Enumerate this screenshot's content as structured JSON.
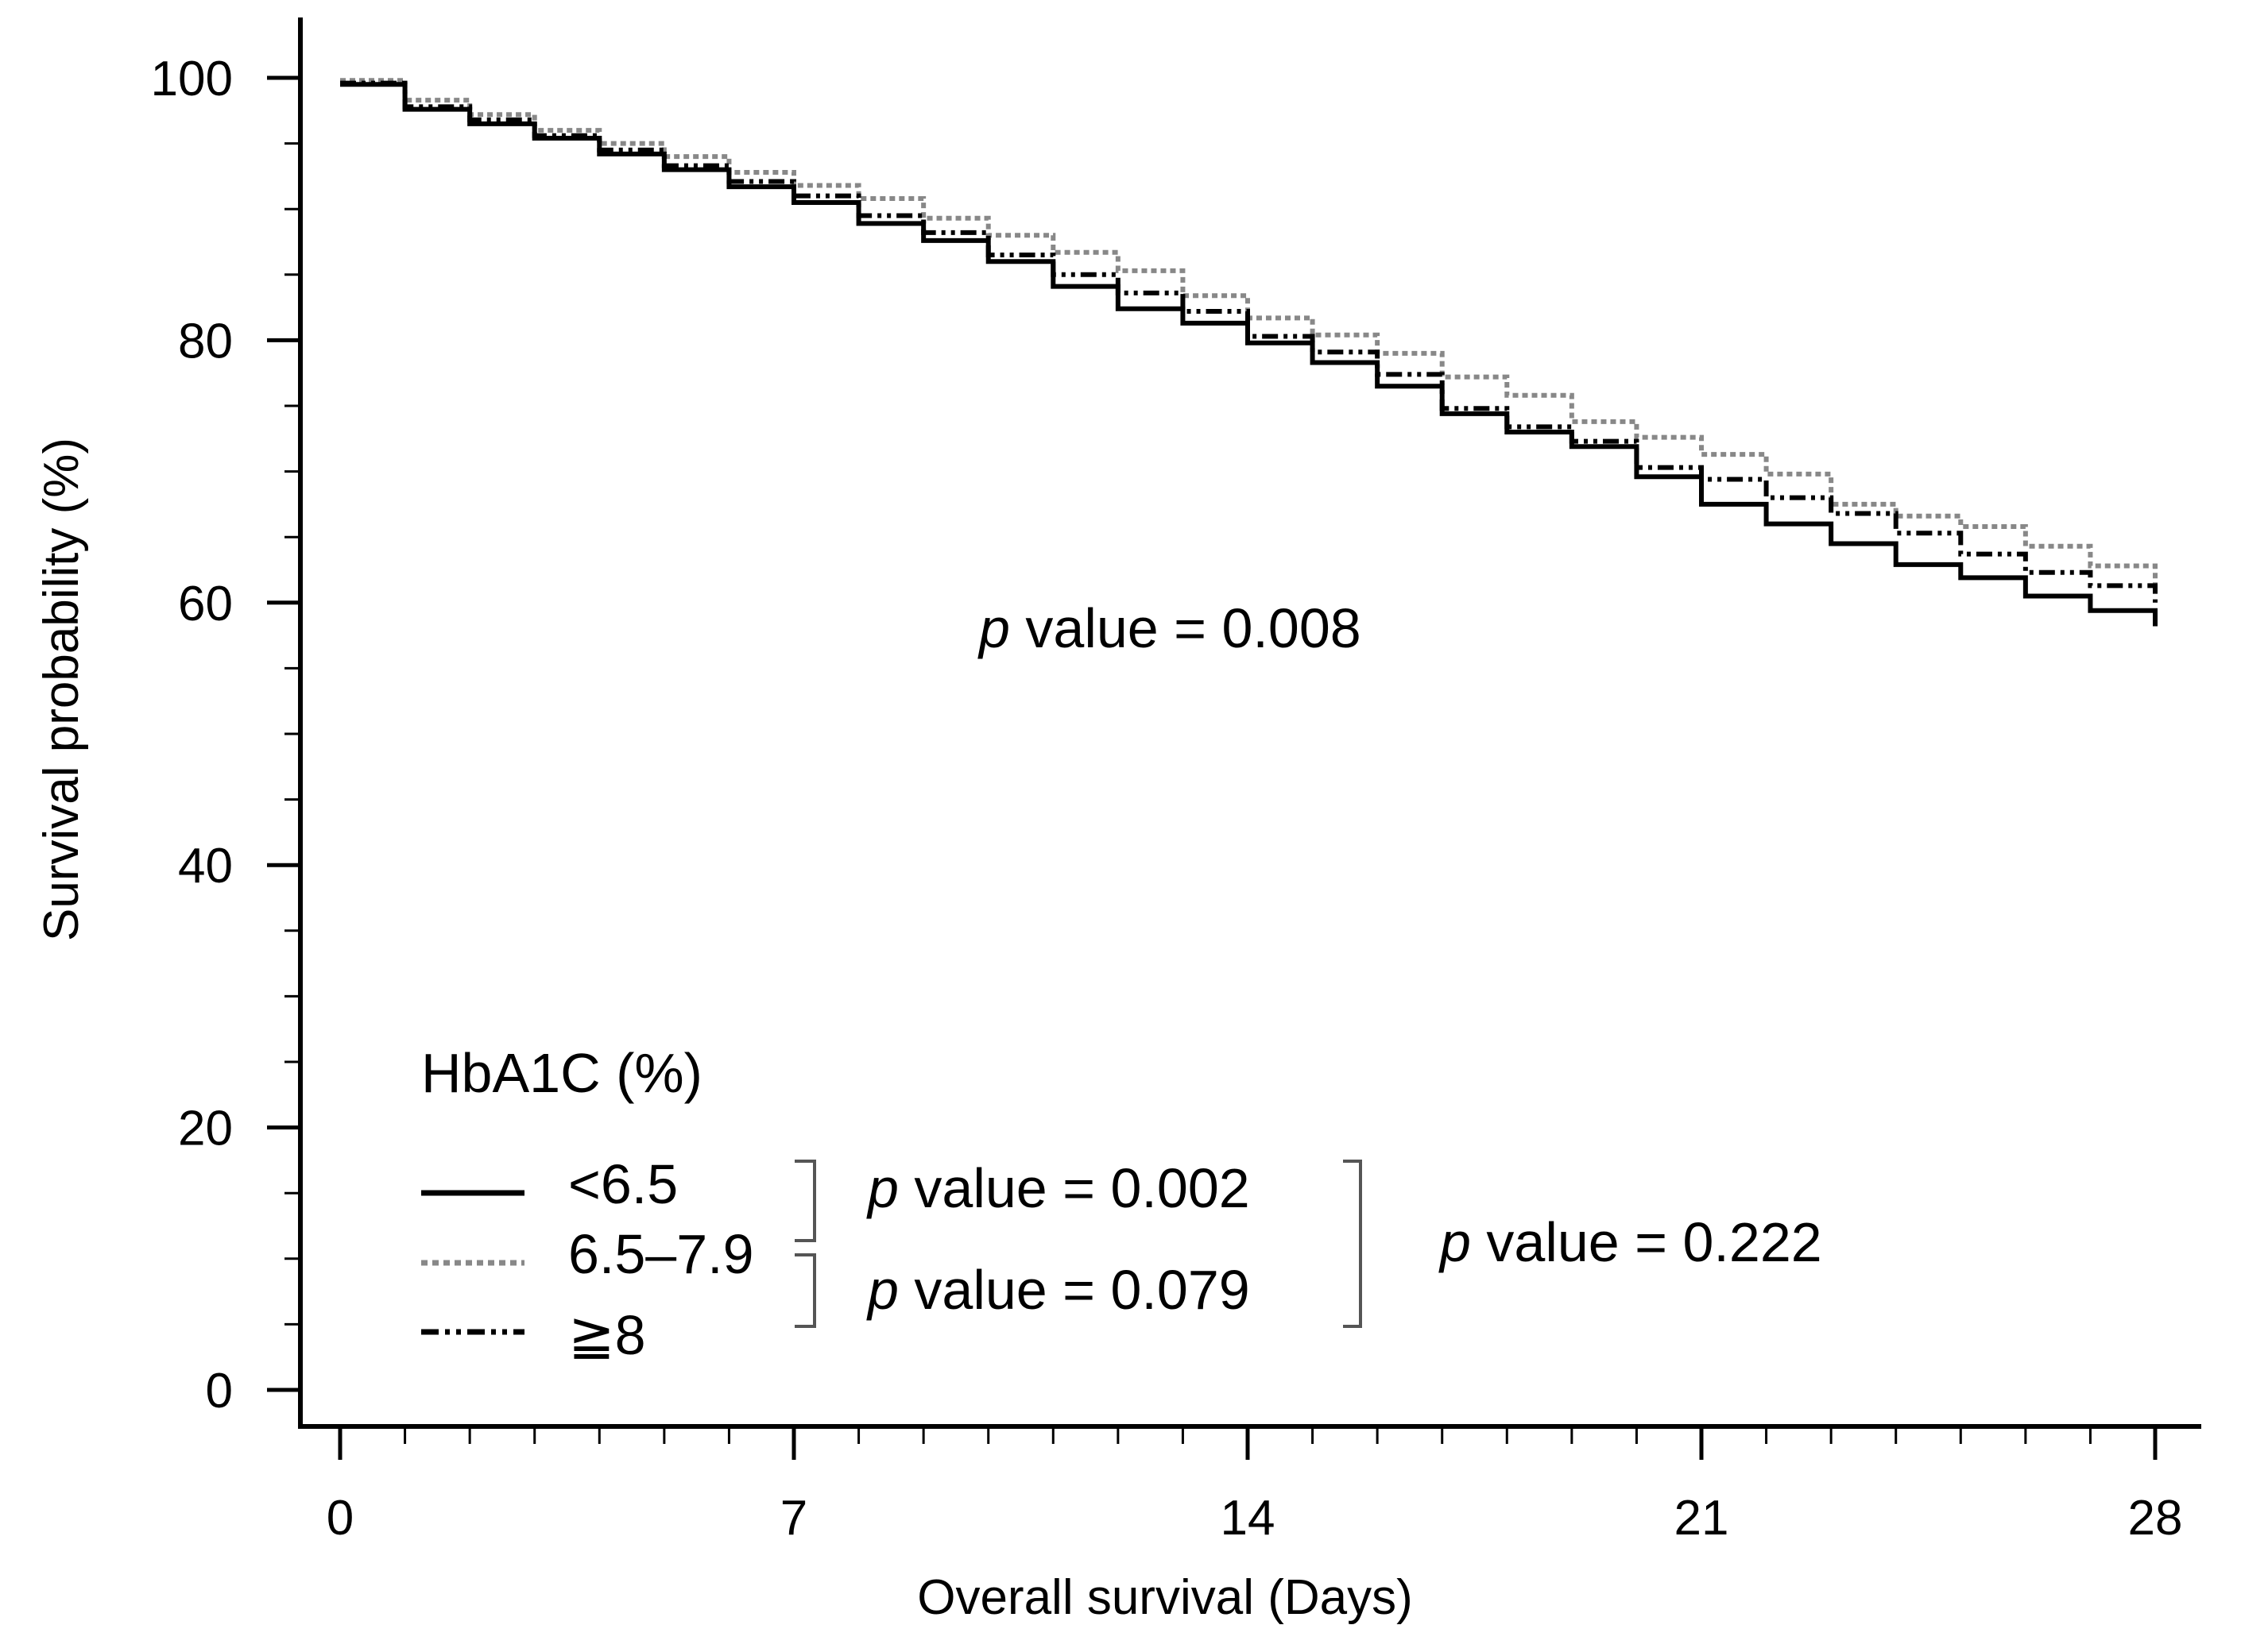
{
  "chart_data": {
    "type": "line",
    "title": "",
    "xlabel": "Overall survival (Days)",
    "ylabel": "Survival probability (%)",
    "xlim": [
      0,
      28
    ],
    "ylim": [
      0,
      100
    ],
    "x_ticks": [
      0,
      7,
      14,
      21,
      28
    ],
    "y_ticks": [
      0,
      20,
      40,
      60,
      80,
      100
    ],
    "grid": false,
    "legend_title": "HbA1C (%)",
    "legend_position": "bottom-left",
    "x": [
      0,
      1,
      2,
      3,
      4,
      5,
      6,
      7,
      8,
      9,
      10,
      11,
      12,
      13,
      14,
      15,
      16,
      17,
      18,
      19,
      20,
      21,
      22,
      23,
      24,
      25,
      26,
      27,
      28
    ],
    "series": [
      {
        "name": "<6.5",
        "style": "solid",
        "color": "#000000",
        "values": [
          99.5,
          97.6,
          96.5,
          95.4,
          94.2,
          93.0,
          91.7,
          90.5,
          88.9,
          87.6,
          86.0,
          84.1,
          82.4,
          81.3,
          79.8,
          78.3,
          76.5,
          74.4,
          73.0,
          71.9,
          69.6,
          67.5,
          66.0,
          64.5,
          62.9,
          61.9,
          60.5,
          59.4,
          58.2
        ]
      },
      {
        "name": "6.5–7.9",
        "style": "dotted",
        "color": "#888888",
        "values": [
          99.8,
          98.3,
          97.2,
          96.0,
          95.0,
          94.0,
          92.8,
          91.8,
          90.8,
          89.3,
          88.0,
          86.7,
          85.3,
          83.4,
          81.7,
          80.4,
          79.0,
          77.2,
          75.8,
          73.8,
          72.6,
          71.3,
          69.8,
          67.5,
          66.6,
          65.8,
          64.3,
          62.8,
          61.0
        ]
      },
      {
        "name": "≧8",
        "style": "dash-dot-dot",
        "color": "#000000",
        "values": [
          99.6,
          97.8,
          96.8,
          95.6,
          94.5,
          93.3,
          92.1,
          91.0,
          89.5,
          88.2,
          86.5,
          85.0,
          83.6,
          82.2,
          80.3,
          79.1,
          77.4,
          74.8,
          73.4,
          72.3,
          70.3,
          69.4,
          68.0,
          66.8,
          65.3,
          63.7,
          62.3,
          61.3,
          60.0
        ]
      }
    ],
    "annotations": {
      "overall": {
        "italic": "p",
        "text": " value = 0.008"
      },
      "comparison_1_2": {
        "italic": "p",
        "text": " value = 0.002"
      },
      "comparison_2_3": {
        "italic": "p",
        "text": " value = 0.079"
      },
      "comparison_1_3": {
        "italic": "p",
        "text": " value = 0.222"
      }
    }
  }
}
